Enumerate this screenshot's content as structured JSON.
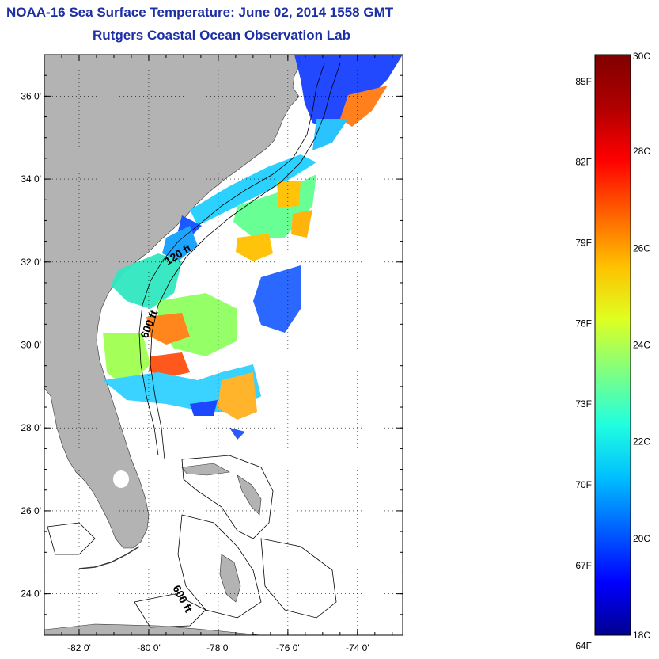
{
  "header": {
    "title": "NOAA-16 Sea Surface Temperature:  June 02, 2014 1558 GMT",
    "subtitle": "Rutgers Coastal Ocean Observation Lab"
  },
  "map": {
    "lat_labels": [
      "36 0'",
      "34 0'",
      "32 0'",
      "30 0'",
      "28 0'",
      "26 0'",
      "24 0'"
    ],
    "lon_labels": [
      "-82 0'",
      "-80 0'",
      "-78 0'",
      "-76 0'",
      "-74 0'"
    ],
    "lat_values": [
      36,
      34,
      32,
      30,
      28,
      26,
      24
    ],
    "lon_values": [
      -82,
      -80,
      -78,
      -76,
      -74
    ],
    "lon_range": [
      -83,
      -72.7
    ],
    "lat_range": [
      23.0,
      37.0
    ],
    "contour_labels": [
      "120 ft",
      "600 ft",
      "600 ft"
    ],
    "land_color": "#b3b3b3",
    "ocean_color": "#ffffff"
  },
  "colorbar": {
    "f_labels": [
      "85F",
      "82F",
      "79F",
      "76F",
      "73F",
      "70F",
      "67F",
      "64F"
    ],
    "c_labels": [
      "30C",
      "28C",
      "26C",
      "24C",
      "22C",
      "20C",
      "18C"
    ],
    "c_values": [
      30,
      28,
      26,
      24,
      22,
      20,
      18
    ],
    "f_values": [
      85,
      82,
      79,
      76,
      73,
      70,
      67,
      64
    ],
    "c_range": [
      18,
      30
    ],
    "colormap": [
      "#00008f",
      "#0000ff",
      "#0060ff",
      "#00c0ff",
      "#20ffdf",
      "#80ff80",
      "#dfff20",
      "#ffc000",
      "#ff6000",
      "#ff0000",
      "#b00000",
      "#800000"
    ]
  }
}
